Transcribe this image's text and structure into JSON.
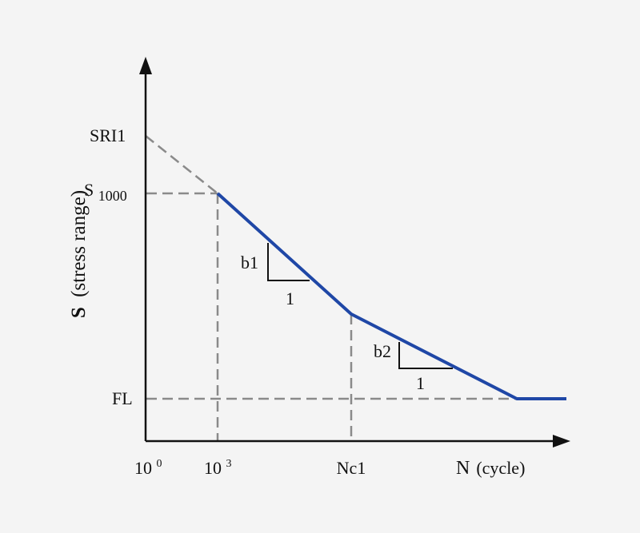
{
  "colors": {
    "background": "#f4f4f4",
    "axis": "#111111",
    "curve": "#1f47a6",
    "guide": "#8a8a8a",
    "slope_triangle": "#111111"
  },
  "axes": {
    "y_label_main": "S",
    "y_label_rest": "(stress range)",
    "x_label_main": "N",
    "x_label_rest": "(cycle)"
  },
  "y_ticks": {
    "sri1": "SRI1",
    "s1000_main": "S",
    "s1000_sub": "1000",
    "fl": "FL"
  },
  "x_ticks": {
    "origin_base": "10",
    "origin_exp": "0",
    "k_base": "10",
    "k_exp": "3",
    "nc1": "Nc1"
  },
  "slopes": {
    "first_slope": "b1",
    "first_run": "1",
    "second_slope": "b2",
    "second_run": "1"
  }
}
